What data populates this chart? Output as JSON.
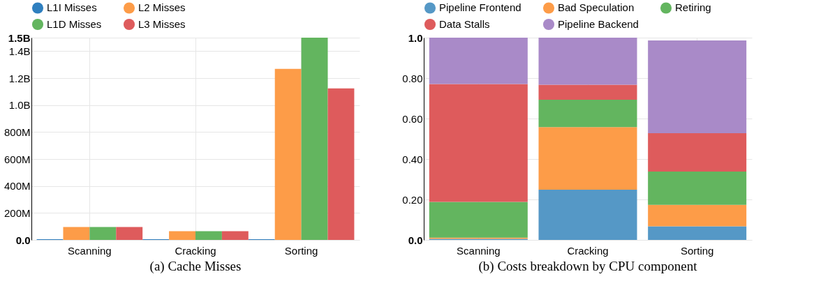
{
  "chart_data": [
    {
      "type": "bar",
      "title": "(a) Cache Misses",
      "categories": [
        "Scanning",
        "Cracking",
        "Sorting"
      ],
      "series": [
        {
          "name": "L1I Misses",
          "color": "#2f7fbf",
          "values": [
            5000000,
            5000000,
            5000000
          ]
        },
        {
          "name": "L2 Misses",
          "color": "#fd9c48",
          "values": [
            96000000,
            65000000,
            1268000000
          ]
        },
        {
          "name": "L1D Misses",
          "color": "#63b55f",
          "values": [
            96000000,
            65000000,
            1500000000
          ]
        },
        {
          "name": "L3 Misses",
          "color": "#de5b5c",
          "values": [
            96000000,
            65000000,
            1124000000
          ]
        }
      ],
      "ylim": [
        0,
        1500000000
      ],
      "yticks": [
        {
          "value": 0,
          "label": "0.0"
        },
        {
          "value": 200000000,
          "label": "200M"
        },
        {
          "value": 400000000,
          "label": "400M"
        },
        {
          "value": 600000000,
          "label": "600M"
        },
        {
          "value": 800000000,
          "label": "800M"
        },
        {
          "value": 1000000000,
          "label": "1.0B"
        },
        {
          "value": 1200000000,
          "label": "1.2B"
        },
        {
          "value": 1400000000,
          "label": "1.4B"
        },
        {
          "value": 1500000000,
          "label": "1.5B"
        }
      ],
      "grid": true,
      "legend": "top left"
    },
    {
      "type": "bar",
      "title": "(b) Costs breakdown by CPU component",
      "categories": [
        "Scanning",
        "Cracking",
        "Sorting"
      ],
      "stacked": true,
      "series": [
        {
          "name": "Pipeline Frontend",
          "color": "#5598c6",
          "values": [
            0.005,
            0.248,
            0.067
          ]
        },
        {
          "name": "Bad Speculation",
          "color": "#fd9c48",
          "values": [
            0.006,
            0.31,
            0.106
          ]
        },
        {
          "name": "Retiring",
          "color": "#63b55f",
          "values": [
            0.177,
            0.135,
            0.165
          ]
        },
        {
          "name": "Data Stalls",
          "color": "#de5b5c",
          "values": [
            0.583,
            0.074,
            0.19
          ]
        },
        {
          "name": "Pipeline Backend",
          "color": "#a98ac8",
          "values": [
            0.229,
            0.233,
            0.458
          ]
        }
      ],
      "ylim": [
        0,
        1
      ],
      "yticks": [
        {
          "value": 0,
          "label": "0.0"
        },
        {
          "value": 0.2,
          "label": "0.20"
        },
        {
          "value": 0.4,
          "label": "0.40"
        },
        {
          "value": 0.6,
          "label": "0.60"
        },
        {
          "value": 0.8,
          "label": "0.80"
        },
        {
          "value": 1,
          "label": "1.0"
        }
      ],
      "grid": true,
      "legend": "top left"
    }
  ]
}
